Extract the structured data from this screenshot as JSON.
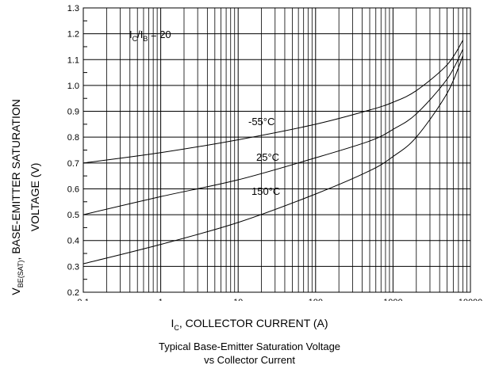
{
  "chart_data": {
    "type": "line",
    "x_scale": "log",
    "xlim": [
      0.1,
      10000
    ],
    "ylim": [
      0.2,
      1.3
    ],
    "x_ticks": [
      "0.1",
      "1",
      "10",
      "100",
      "1000",
      "10000"
    ],
    "y_ticks": [
      "0.2",
      "0.3",
      "0.4",
      "0.5",
      "0.6",
      "0.7",
      "0.8",
      "0.9",
      "1.0",
      "1.1",
      "1.2",
      "1.3"
    ],
    "grid": true,
    "xlabel": {
      "main": "I",
      "sub": "C",
      "rest": ", COLLECTOR CURRENT (A)"
    },
    "ylabel": {
      "main": "V",
      "sub": "BE(SAT)",
      "rest1": ", BASE-EMITTER SATURATION",
      "rest2": "VOLTAGE (V)"
    },
    "caption_line1": "Typical Base-Emitter Saturation Voltage",
    "caption_line2": "vs Collector Current",
    "annotation": {
      "i1": "I",
      "s1": "C",
      "slash": "/I",
      "s2": "B",
      "eq": " = 20"
    },
    "series": [
      {
        "name": "-55°C",
        "x": [
          0.1,
          1,
          10,
          100,
          500,
          1000,
          2000,
          5000,
          8000
        ],
        "y": [
          0.7,
          0.74,
          0.79,
          0.85,
          0.905,
          0.935,
          0.98,
          1.08,
          1.175
        ]
      },
      {
        "name": "25°C",
        "x": [
          0.1,
          1,
          10,
          100,
          500,
          1000,
          2000,
          5000,
          8000
        ],
        "y": [
          0.5,
          0.57,
          0.635,
          0.72,
          0.785,
          0.83,
          0.89,
          1.025,
          1.14
        ]
      },
      {
        "name": "150°C",
        "x": [
          0.1,
          1,
          10,
          100,
          500,
          1000,
          2000,
          5000,
          8000
        ],
        "y": [
          0.31,
          0.385,
          0.47,
          0.58,
          0.67,
          0.725,
          0.8,
          0.97,
          1.115
        ]
      }
    ]
  }
}
